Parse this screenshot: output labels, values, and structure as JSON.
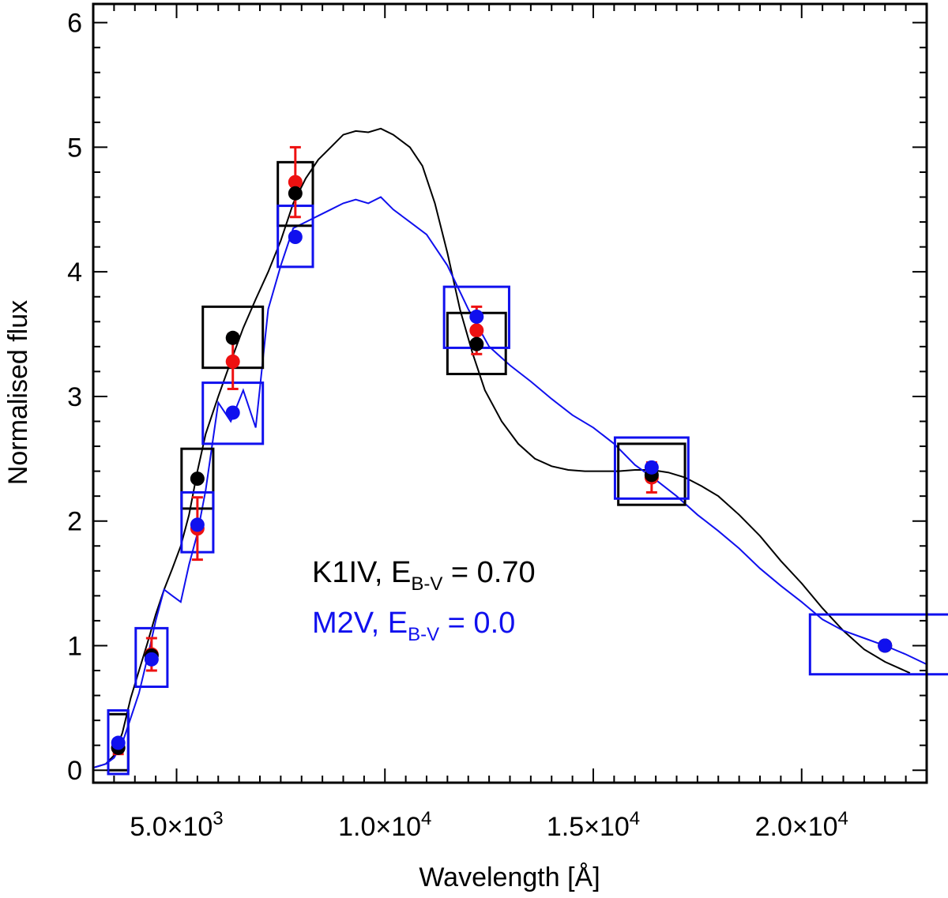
{
  "chart_data": {
    "type": "line",
    "title": "",
    "xlabel": "Wavelength [Å]",
    "ylabel": "Normalised flux",
    "xlim": [
      3000,
      23000
    ],
    "ylim": [
      -0.1,
      6.15
    ],
    "x_ticks": [
      {
        "value": 5000,
        "label": "5.0×10",
        "exp": "3"
      },
      {
        "value": 10000,
        "label": "1.0×10",
        "exp": "4"
      },
      {
        "value": 15000,
        "label": "1.5×10",
        "exp": "4"
      },
      {
        "value": 20000,
        "label": "2.0×10",
        "exp": "4"
      }
    ],
    "y_ticks": [
      0,
      1,
      2,
      3,
      4,
      5,
      6
    ],
    "y_tick_labels": [
      "0",
      "1",
      "2",
      "3",
      "4",
      "5",
      "6"
    ],
    "colors": {
      "k1iv": "#000000",
      "m2v": "#1010ee",
      "observed": "#ee1111"
    },
    "annotations": [
      {
        "name": "k1iv-label",
        "prefix": "K1IV, E",
        "sub": "B-V",
        "suffix": " = 0.70",
        "color": "#000000"
      },
      {
        "name": "m2v-label",
        "prefix": "M2V, E",
        "sub": "B-V",
        "suffix": " = 0.0",
        "color": "#1010ee"
      }
    ],
    "series": [
      {
        "name": "K1IV, E(B-V) = 0.70 model spectrum",
        "color": "#000000",
        "x": [
          3000,
          3300,
          3500,
          3700,
          3900,
          4100,
          4300,
          4500,
          4700,
          4900,
          5100,
          5300,
          5500,
          5700,
          6000,
          6300,
          6600,
          6900,
          7200,
          7500,
          7800,
          8100,
          8400,
          8700,
          9000,
          9300,
          9600,
          9900,
          10200,
          10600,
          10900,
          11200,
          11500,
          11800,
          12100,
          12400,
          12800,
          13200,
          13600,
          14000,
          14400,
          14800,
          15200,
          15600,
          16000,
          16400,
          16800,
          17200,
          17600,
          18000,
          18500,
          19000,
          19500,
          20000,
          20500,
          21000,
          21500,
          22000,
          22600
        ],
        "y": [
          0.02,
          0.05,
          0.12,
          0.3,
          0.58,
          0.8,
          1.02,
          1.25,
          1.45,
          1.62,
          1.8,
          2.05,
          2.4,
          2.7,
          3.0,
          3.28,
          3.55,
          3.78,
          4.0,
          4.25,
          4.55,
          4.75,
          4.9,
          5.0,
          5.1,
          5.13,
          5.12,
          5.15,
          5.1,
          5.0,
          4.85,
          4.55,
          4.15,
          3.7,
          3.35,
          3.05,
          2.8,
          2.62,
          2.5,
          2.44,
          2.41,
          2.4,
          2.4,
          2.4,
          2.41,
          2.41,
          2.39,
          2.35,
          2.28,
          2.2,
          2.05,
          1.88,
          1.68,
          1.5,
          1.3,
          1.12,
          0.97,
          0.87,
          0.78
        ]
      },
      {
        "name": "M2V, E(B-V) = 0.0 model spectrum",
        "color": "#1010ee",
        "x": [
          3000,
          3300,
          3500,
          3700,
          3900,
          4100,
          4300,
          4500,
          4700,
          4900,
          5100,
          5300,
          5500,
          5700,
          6000,
          6300,
          6600,
          6900,
          7200,
          7500,
          7800,
          8100,
          8400,
          8700,
          9000,
          9300,
          9600,
          9900,
          10200,
          10600,
          11000,
          11500,
          12000,
          12500,
          13000,
          13500,
          14000,
          14500,
          15000,
          15500,
          16000,
          16500,
          17000,
          17500,
          18000,
          18500,
          19000,
          19500,
          20000,
          20500,
          21000,
          21500,
          22000,
          22500,
          23000
        ],
        "y": [
          0.02,
          0.05,
          0.1,
          0.22,
          0.42,
          0.62,
          0.9,
          1.2,
          1.45,
          1.4,
          1.35,
          1.65,
          1.9,
          2.25,
          2.95,
          2.8,
          3.05,
          2.75,
          3.7,
          4.05,
          4.35,
          4.4,
          4.45,
          4.5,
          4.55,
          4.58,
          4.55,
          4.6,
          4.5,
          4.4,
          4.3,
          4.05,
          3.7,
          3.4,
          3.25,
          3.12,
          2.98,
          2.85,
          2.75,
          2.62,
          2.45,
          2.33,
          2.2,
          2.05,
          1.92,
          1.78,
          1.62,
          1.48,
          1.35,
          1.21,
          1.12,
          1.06,
          1.0,
          0.93,
          0.85
        ]
      }
    ],
    "k1iv_photometry": {
      "x": [
        3600,
        4400,
        5500,
        6350,
        7850,
        12200,
        16400,
        22000
      ],
      "y": [
        0.18,
        0.92,
        2.34,
        3.47,
        4.63,
        3.42,
        2.37,
        1.0
      ],
      "box_halfwidth": [
        240,
        380,
        380,
        720,
        420,
        700,
        800,
        0
      ],
      "box_y": [
        [
          0.0,
          0.45
        ],
        [
          0.0,
          0.0
        ],
        [
          2.1,
          2.58
        ],
        [
          3.23,
          3.72
        ],
        [
          4.37,
          4.88
        ],
        [
          3.18,
          3.67
        ],
        [
          2.13,
          2.62
        ],
        [
          0.0,
          0.0
        ]
      ]
    },
    "m2v_photometry": {
      "x": [
        3600,
        4400,
        5500,
        6350,
        7850,
        12200,
        16400,
        22000
      ],
      "y": [
        0.22,
        0.89,
        1.97,
        2.87,
        4.28,
        3.64,
        2.43,
        1.0
      ],
      "box_halfwidth": [
        240,
        380,
        380,
        720,
        420,
        780,
        880,
        1800
      ],
      "box_y": [
        [
          -0.03,
          0.48
        ],
        [
          0.67,
          1.14
        ],
        [
          1.75,
          2.23
        ],
        [
          2.62,
          3.11
        ],
        [
          4.04,
          4.53
        ],
        [
          3.39,
          3.88
        ],
        [
          2.18,
          2.67
        ],
        [
          0.77,
          1.25
        ]
      ]
    },
    "observed_photometry": {
      "x": [
        3600,
        4400,
        5500,
        6350,
        7850,
        12200,
        16400,
        22000
      ],
      "y": [
        0.18,
        0.93,
        1.94,
        3.28,
        4.72,
        3.53,
        2.35,
        1.0
      ],
      "err": [
        0.05,
        0.13,
        0.25,
        0.22,
        0.28,
        0.19,
        0.12,
        0.03
      ]
    }
  }
}
